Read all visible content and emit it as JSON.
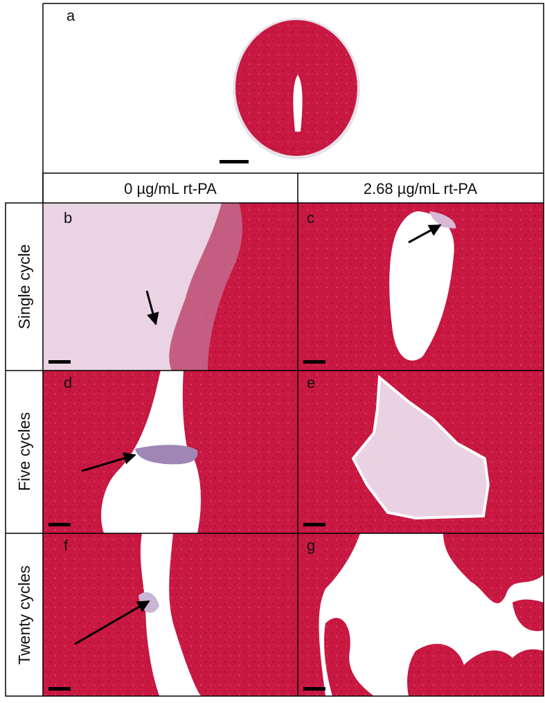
{
  "panels": {
    "a": "a",
    "b": "b",
    "c": "c",
    "d": "d",
    "e": "e",
    "f": "f",
    "g": "g"
  },
  "columns": [
    "0 µg/mL rt-PA",
    "2.68 µg/mL rt-PA"
  ],
  "rows": [
    "Single cycle",
    "Five cycles",
    "Twenty cycles"
  ]
}
